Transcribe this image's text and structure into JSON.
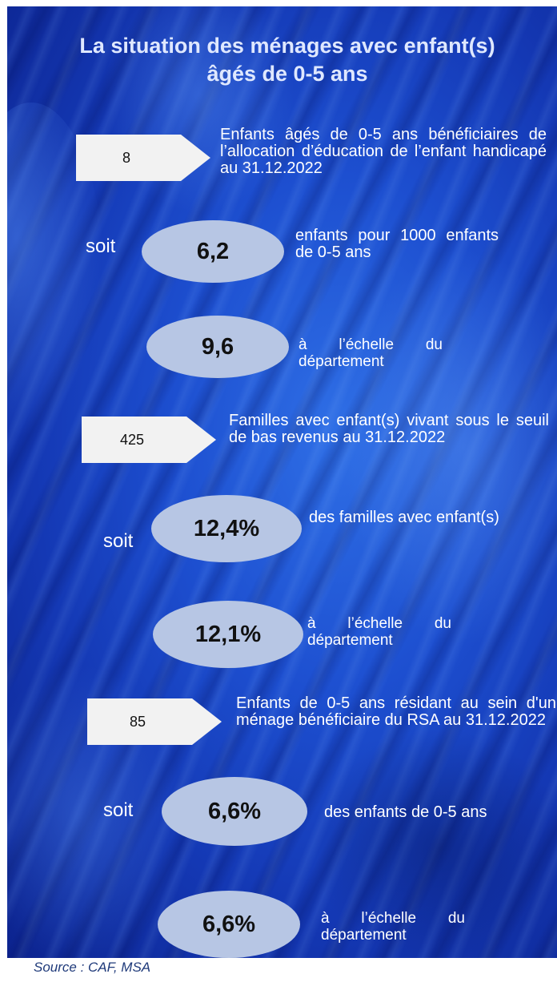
{
  "title": "La situation des ménages avec enfant(s) âgés de 0-5 ans",
  "sections": [
    {
      "count": "8",
      "description": "Enfants âgés de 0-5 ans bénéficiaires de l’allocation d’éducation de l’enfant handicapé au 31.12.2022",
      "soit": "soit",
      "value": "6,2",
      "value_label": "enfants pour 1000 enfants de 0-5 ans",
      "dept_value": "9,6",
      "dept_label": "à l’échelle du département"
    },
    {
      "count": "425",
      "description": "Familles avec enfant(s) vivant sous le seuil de bas revenus au 31.12.2022",
      "soit": "soit",
      "value": "12,4%",
      "value_label": "des familles avec enfant(s)",
      "dept_value": "12,1%",
      "dept_label": "à l’échelle du département"
    },
    {
      "count": "85",
      "description": "Enfants de 0-5 ans résidant au sein d'un ménage bénéficiaire du RSA au 31.12.2022",
      "soit": "soit",
      "value": "6,6%",
      "value_label": "des enfants de 0-5 ans",
      "dept_value": "6,6%",
      "dept_label": "à l’échelle du département"
    }
  ],
  "source": "Source : CAF, MSA",
  "colors": {
    "background": "#1d4fd0",
    "oval": "#b7c6e4",
    "tag": "#f2f2f2",
    "title": "#dfe8ff",
    "source": "#1f3a7a"
  }
}
